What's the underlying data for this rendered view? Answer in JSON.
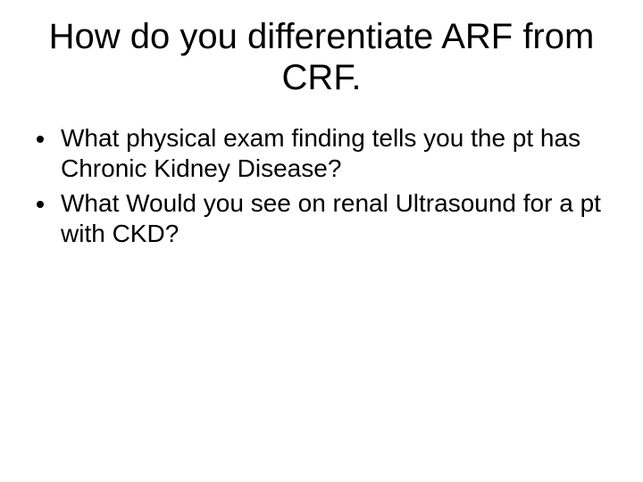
{
  "slide": {
    "title": "How do you differentiate ARF from CRF.",
    "bullets": [
      "What physical exam finding tells you the pt has Chronic Kidney Disease?",
      "What Would you see on renal Ultrasound for a pt with CKD?"
    ],
    "title_fontsize": 40,
    "bullet_fontsize": 28,
    "text_color": "#000000",
    "background_color": "#ffffff"
  }
}
